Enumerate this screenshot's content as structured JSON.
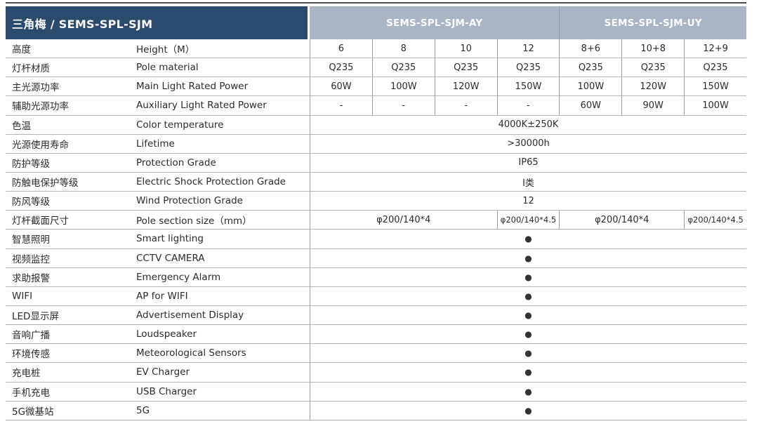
{
  "header": {
    "title": "三角梅 / SEMS-SPL-SJM",
    "groups": [
      {
        "label": "SEMS-SPL-SJM-AY",
        "span": 4
      },
      {
        "label": "SEMS-SPL-SJM-UY",
        "span": 3
      }
    ]
  },
  "colors": {
    "header_dark": "#2b4a6e",
    "header_light": "#a9b4c4",
    "dot": "#333333"
  },
  "rows": [
    {
      "zh": "高度",
      "en": "Height（M）",
      "cells": [
        {
          "text": "6"
        },
        {
          "text": "8"
        },
        {
          "text": "10"
        },
        {
          "text": "12"
        },
        {
          "text": "8+6"
        },
        {
          "text": "10+8"
        },
        {
          "text": "12+9"
        }
      ]
    },
    {
      "zh": "灯杆材质",
      "en": "Pole material",
      "cells": [
        {
          "text": "Q235"
        },
        {
          "text": "Q235"
        },
        {
          "text": "Q235"
        },
        {
          "text": "Q235"
        },
        {
          "text": "Q235"
        },
        {
          "text": "Q235"
        },
        {
          "text": "Q235"
        }
      ]
    },
    {
      "zh": "主光源功率",
      "en": "Main Light Rated Power",
      "cells": [
        {
          "text": "60W"
        },
        {
          "text": "100W"
        },
        {
          "text": "120W"
        },
        {
          "text": "150W"
        },
        {
          "text": "100W"
        },
        {
          "text": "120W"
        },
        {
          "text": "150W"
        }
      ]
    },
    {
      "zh": "辅助光源功率",
      "en": "Auxiliary Light Rated Power",
      "cells": [
        {
          "text": "-"
        },
        {
          "text": "-"
        },
        {
          "text": "-"
        },
        {
          "text": "-"
        },
        {
          "text": "60W"
        },
        {
          "text": "90W"
        },
        {
          "text": "100W"
        }
      ]
    },
    {
      "zh": "色温",
      "en": "Color temperature",
      "cells": [
        {
          "text": "4000K±250K",
          "span": 7
        }
      ]
    },
    {
      "zh": "光源使用寿命",
      "en": "Lifetime",
      "cells": [
        {
          "text": ">30000h",
          "span": 7
        }
      ]
    },
    {
      "zh": "防护等级",
      "en": "Protection Grade",
      "cells": [
        {
          "text": "IP65",
          "span": 7
        }
      ]
    },
    {
      "zh": "防触电保护等级",
      "en": "Electric Shock Protection Grade",
      "cells": [
        {
          "text": "I类",
          "span": 7
        }
      ]
    },
    {
      "zh": "防风等级",
      "en": "Wind Protection Grade",
      "cells": [
        {
          "text": "12",
          "span": 7
        }
      ]
    },
    {
      "zh": "灯杆截面尺寸",
      "en": "Pole section size（mm）",
      "cells": [
        {
          "text": "φ200/140*4",
          "span": 3
        },
        {
          "text": "φ200/140*4.5",
          "span": 1
        },
        {
          "text": "φ200/140*4",
          "span": 2
        },
        {
          "text": "φ200/140*4.5",
          "span": 1
        }
      ]
    },
    {
      "zh": "智慧照明",
      "en": "Smart lighting",
      "cells": [
        {
          "text": "●",
          "span": 7,
          "dot": true
        }
      ]
    },
    {
      "zh": "视频监控",
      "en": "CCTV CAMERA",
      "cells": [
        {
          "text": "●",
          "span": 7,
          "dot": true
        }
      ]
    },
    {
      "zh": "求助报警",
      "en": "Emergency Alarm",
      "cells": [
        {
          "text": "●",
          "span": 7,
          "dot": true
        }
      ]
    },
    {
      "zh": "WIFI",
      "en": "AP for WIFI",
      "cells": [
        {
          "text": "●",
          "span": 7,
          "dot": true
        }
      ]
    },
    {
      "zh": "LED显示屏",
      "en": "Advertisement Display",
      "cells": [
        {
          "text": "●",
          "span": 7,
          "dot": true
        }
      ]
    },
    {
      "zh": "音响广播",
      "en": "Loudspeaker",
      "cells": [
        {
          "text": "●",
          "span": 7,
          "dot": true
        }
      ]
    },
    {
      "zh": "环境传感",
      "en": "Meteorological Sensors",
      "cells": [
        {
          "text": "●",
          "span": 7,
          "dot": true
        }
      ]
    },
    {
      "zh": "充电桩",
      "en": "EV Charger",
      "cells": [
        {
          "text": "●",
          "span": 7,
          "dot": true
        }
      ]
    },
    {
      "zh": "手机充电",
      "en": "USB Charger",
      "cells": [
        {
          "text": "●",
          "span": 7,
          "dot": true
        }
      ]
    },
    {
      "zh": "5G微基站",
      "en": "5G",
      "cells": [
        {
          "text": "●",
          "span": 7,
          "dot": true
        }
      ]
    }
  ]
}
